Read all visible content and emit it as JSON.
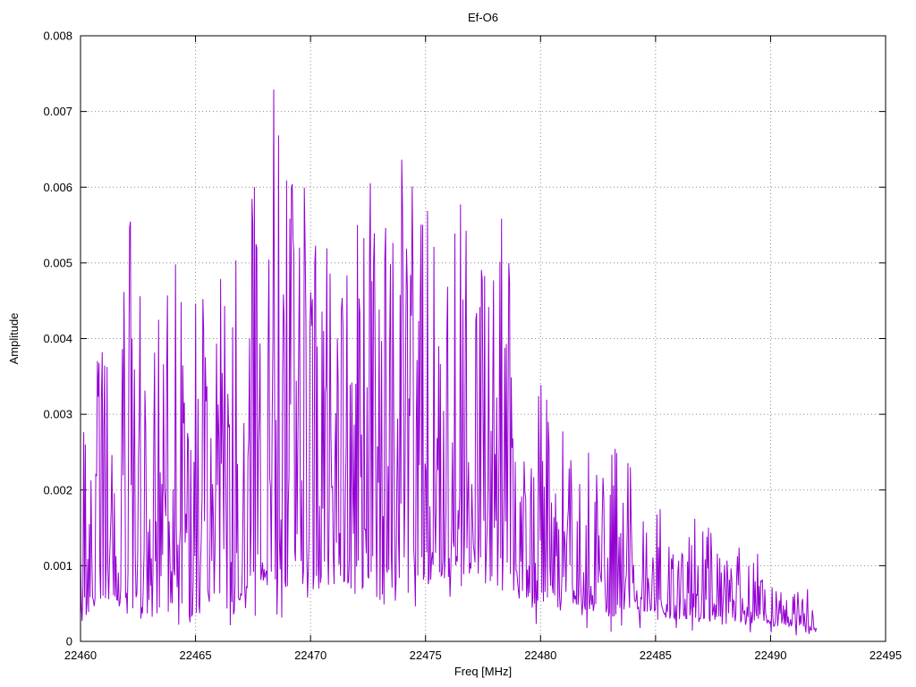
{
  "chart_data": {
    "type": "line",
    "title": "Ef-O6",
    "xlabel": "Freq [MHz]",
    "ylabel": "Amplitude",
    "xlim": [
      22460,
      22495
    ],
    "ylim": [
      0,
      0.008
    ],
    "xticks": [
      22460,
      22465,
      22470,
      22475,
      22480,
      22485,
      22490,
      22495
    ],
    "yticks": [
      0,
      0.001,
      0.002,
      0.003,
      0.004,
      0.005,
      0.006,
      0.007,
      0.008
    ],
    "grid": true,
    "legend": "none",
    "line_color": "#9400D3",
    "series": [
      {
        "name": "Ef-O6",
        "x_start": 22460,
        "x_end": 22492,
        "envelope_step": 0.5,
        "peak_envelope": [
          0.003,
          0.0031,
          0.0045,
          0.0049,
          0.0056,
          0.0055,
          0.0038,
          0.0045,
          0.0059,
          0.0042,
          0.0056,
          0.005,
          0.0049,
          0.0044,
          0.0059,
          0.006,
          0.0061,
          0.008,
          0.0064,
          0.0065,
          0.007,
          0.0059,
          0.0052,
          0.0048,
          0.0059,
          0.007,
          0.0052,
          0.0058,
          0.0074,
          0.006,
          0.0069,
          0.0052,
          0.0049,
          0.0059,
          0.0052,
          0.0052,
          0.0057,
          0.0057,
          0.0035,
          0.0038,
          0.0038,
          0.0029,
          0.003,
          0.0026,
          0.003,
          0.0025,
          0.003,
          0.0022,
          0.0025,
          0.0016,
          0.002,
          0.0015,
          0.0013,
          0.0014,
          0.0024,
          0.0013,
          0.0011,
          0.0014,
          0.001,
          0.0012,
          0.0009,
          0.0008,
          0.0007,
          0.001,
          0.0004
        ],
        "base_envelope": [
          0.0002,
          0.0004,
          0.0005,
          0.0005,
          0.0004,
          0.0003,
          0.0003,
          0.0004,
          0.0005,
          0.0004,
          0.0003,
          0.0005,
          0.0006,
          0.0002,
          0.0006,
          0.0008,
          0.0008,
          0.0008,
          0.0007,
          0.0008,
          0.0006,
          0.0008,
          0.0007,
          0.0008,
          0.0006,
          0.0008,
          0.0005,
          0.0008,
          0.0004,
          0.0008,
          0.0007,
          0.0009,
          0.0008,
          0.0007,
          0.0009,
          0.0008,
          0.0006,
          0.0007,
          0.0005,
          0.0006,
          0.0005,
          0.0006,
          0.0005,
          0.0005,
          0.0004,
          0.0005,
          0.0003,
          0.0004,
          0.0004,
          0.0004,
          0.0004,
          0.0003,
          0.0003,
          0.0003,
          0.0003,
          0.0003,
          0.0002,
          0.0003,
          0.0002,
          0.0003,
          0.0002,
          0.0002,
          0.0002,
          0.0002,
          0.0001
        ]
      }
    ]
  }
}
